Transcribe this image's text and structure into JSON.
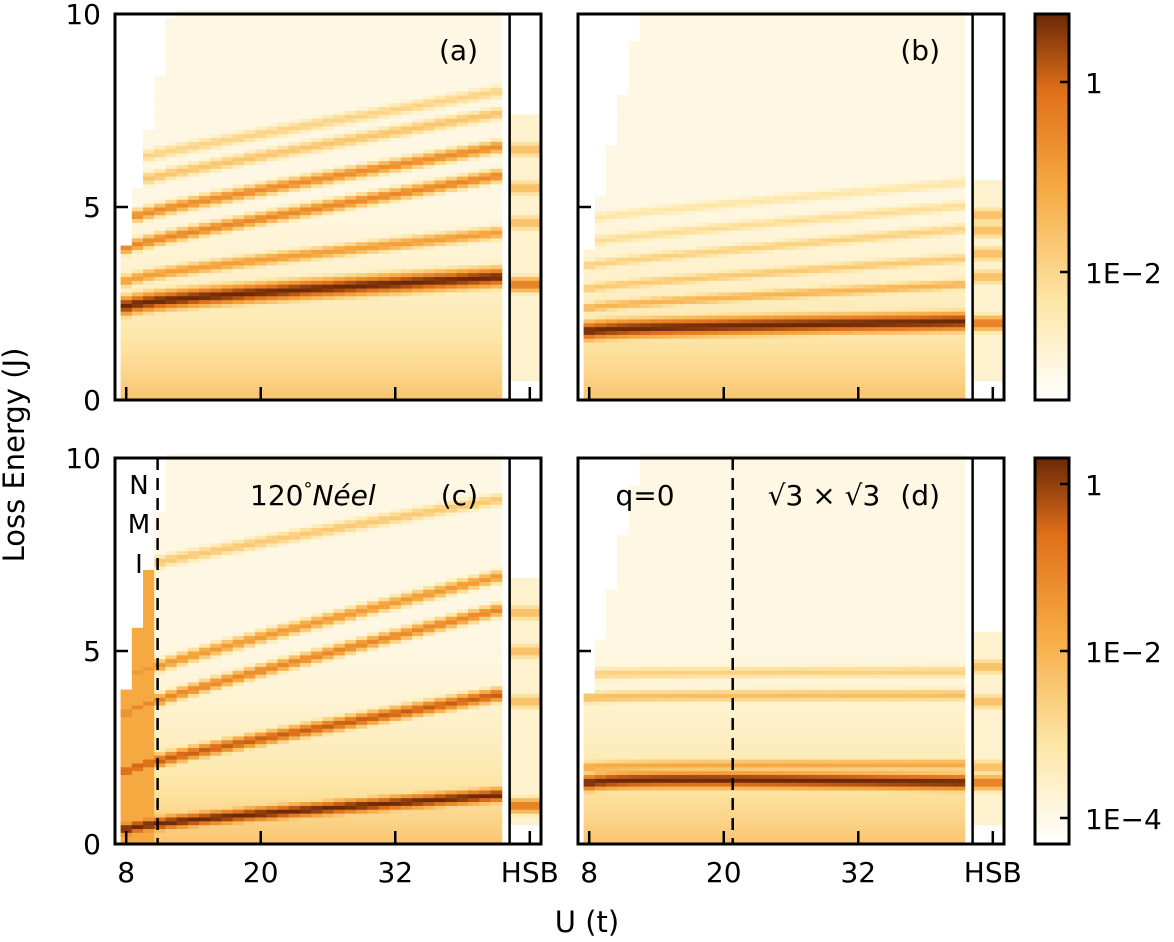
{
  "figure": {
    "xlabel": "U (t)",
    "ylabel": "Loss Energy (J)",
    "colors": {
      "low": "#ffffff",
      "mid1": "#fde7a8",
      "mid2": "#f6a941",
      "mid3": "#e0701a",
      "high": "#6b2807"
    }
  },
  "chart_data": [
    {
      "type": "heatmap",
      "panel": "a",
      "panel_label": "(a)",
      "x_ticks": [
        "8",
        "20",
        "32",
        "HSB"
      ],
      "x_tick_values": [
        8,
        20,
        32,
        44
      ],
      "xlim": [
        7,
        45
      ],
      "hsb_divider_x": 42.2,
      "y_ticks": [
        "0",
        "5",
        "10"
      ],
      "ylim": [
        0,
        10
      ],
      "threshold": {
        "x0": 7.3,
        "e0": 3.0,
        "slope": 1.47
      },
      "bands": [
        {
          "center": 2.45,
          "slope": 0.016,
          "curve": 0.06,
          "width": 0.28,
          "intensity": 1.0
        },
        {
          "center": 3.1,
          "slope": 0.03,
          "curve": 0.07,
          "width": 0.18,
          "intensity": 0.6
        },
        {
          "center": 3.95,
          "slope": 0.05,
          "curve": 0.06,
          "width": 0.18,
          "intensity": 0.7
        },
        {
          "center": 4.7,
          "slope": 0.05,
          "curve": 0.06,
          "width": 0.18,
          "intensity": 0.68
        },
        {
          "center": 5.6,
          "slope": 0.05,
          "curve": 0.05,
          "width": 0.18,
          "intensity": 0.42
        },
        {
          "center": 6.2,
          "slope": 0.05,
          "curve": 0.04,
          "width": 0.18,
          "intensity": 0.35
        }
      ],
      "hsb_bands": [
        3.0,
        4.6,
        5.5,
        6.5
      ]
    },
    {
      "type": "heatmap",
      "panel": "b",
      "panel_label": "(b)",
      "x_ticks": [
        "8",
        "20",
        "32",
        "HSB"
      ],
      "x_tick_values": [
        8,
        20,
        32,
        44
      ],
      "xlim": [
        7,
        45
      ],
      "hsb_divider_x": 42.2,
      "y_ticks": [
        "0",
        "5",
        "10"
      ],
      "ylim": [
        0,
        10
      ],
      "threshold": {
        "x0": 7.3,
        "e0": 3.0,
        "slope": 1.33
      },
      "bands": [
        {
          "center": 1.8,
          "slope": 0.004,
          "curve": 0.03,
          "width": 0.28,
          "intensity": 1.0
        },
        {
          "center": 2.4,
          "slope": 0.015,
          "curve": 0.03,
          "width": 0.16,
          "intensity": 0.5
        },
        {
          "center": 2.9,
          "slope": 0.02,
          "curve": 0.03,
          "width": 0.16,
          "intensity": 0.4
        },
        {
          "center": 3.5,
          "slope": 0.025,
          "curve": 0.03,
          "width": 0.16,
          "intensity": 0.36
        },
        {
          "center": 4.1,
          "slope": 0.025,
          "curve": 0.03,
          "width": 0.16,
          "intensity": 0.3
        },
        {
          "center": 4.7,
          "slope": 0.025,
          "curve": 0.03,
          "width": 0.16,
          "intensity": 0.25
        }
      ],
      "hsb_bands": [
        2.0,
        3.2,
        3.8,
        4.4,
        4.8
      ]
    },
    {
      "type": "heatmap",
      "panel": "c",
      "panel_label": "(c)",
      "region_label": "120°Néel",
      "region_label_prefix": "120",
      "region_label_sup": "°",
      "region_label_italic": "Néel",
      "nmi_letters": [
        "N",
        "M",
        "I"
      ],
      "nmi_divider_x": 10.8,
      "x_ticks": [
        "8",
        "20",
        "32",
        "HSB"
      ],
      "x_tick_values": [
        8,
        20,
        32,
        44
      ],
      "xlim": [
        7,
        45
      ],
      "hsb_divider_x": 42.2,
      "y_ticks": [
        "0",
        "5",
        "10"
      ],
      "ylim": [
        0,
        10
      ],
      "threshold": {
        "x0": 7.3,
        "e0": 3.0,
        "slope": 1.5
      },
      "bands": [
        {
          "center": 0.4,
          "slope": 0.02,
          "curve": 0.06,
          "width": 0.22,
          "intensity": 1.0
        },
        {
          "center": 1.9,
          "slope": 0.05,
          "curve": 0.09,
          "width": 0.2,
          "intensity": 0.85
        },
        {
          "center": 3.4,
          "slope": 0.07,
          "curve": 0.1,
          "width": 0.18,
          "intensity": 0.7
        },
        {
          "center": 4.3,
          "slope": 0.07,
          "curve": 0.09,
          "width": 0.18,
          "intensity": 0.62
        },
        {
          "center": 7.1,
          "slope": 0.05,
          "curve": 0.05,
          "width": 0.18,
          "intensity": 0.4
        }
      ],
      "hsb_bands": [
        1.0,
        3.7,
        5.0,
        6.0
      ]
    },
    {
      "type": "heatmap",
      "panel": "d",
      "panel_label": "(d)",
      "label_q0": "q=0",
      "label_sqrt": "√3 × √3",
      "phase_divider_x": 20.8,
      "x_ticks": [
        "8",
        "20",
        "32",
        "HSB"
      ],
      "x_tick_values": [
        8,
        20,
        32,
        44
      ],
      "xlim": [
        7,
        45
      ],
      "hsb_divider_x": 42.2,
      "y_ticks": [
        "0",
        "5",
        "10"
      ],
      "ylim": [
        0,
        10
      ],
      "threshold": {
        "x0": 7.3,
        "e0": 3.0,
        "slope": 1.35
      },
      "bands": [
        {
          "center": 1.6,
          "slope": -0.005,
          "curve": 0.05,
          "width": 0.25,
          "intensity": 1.0
        },
        {
          "center": 2.0,
          "slope": 0.0,
          "curve": 0.02,
          "width": 0.18,
          "intensity": 0.55
        },
        {
          "center": 3.8,
          "slope": 0.0,
          "curve": 0.02,
          "width": 0.18,
          "intensity": 0.45
        },
        {
          "center": 4.4,
          "slope": 0.0,
          "curve": 0.02,
          "width": 0.18,
          "intensity": 0.36
        }
      ],
      "hsb_bands": [
        1.6,
        2.0,
        3.7,
        4.6
      ]
    }
  ],
  "colorbars": [
    {
      "tick_labels": [
        "1",
        "1E−2"
      ],
      "tick_values": [
        1,
        0.01
      ]
    },
    {
      "tick_labels": [
        "1",
        "1E−2",
        "1E−4"
      ],
      "tick_values": [
        1,
        0.01,
        0.0001
      ]
    }
  ]
}
